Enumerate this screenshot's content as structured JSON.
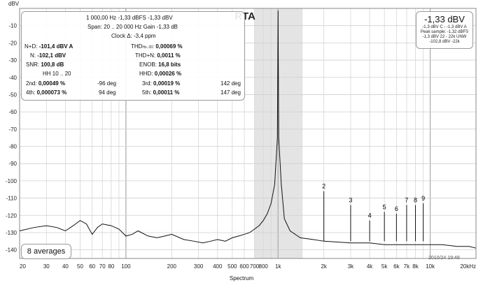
{
  "chart_data": {
    "type": "line",
    "title": "RTA",
    "ylabel": "dBV",
    "xlabel": "Spectrum",
    "xscale": "log",
    "xlim": [
      20,
      20000
    ],
    "ylim": [
      -145,
      0
    ],
    "grid": true,
    "x_ticks": [
      "20",
      "30",
      "40",
      "50",
      "60",
      "70",
      "80",
      "100",
      "200",
      "300",
      "400",
      "500",
      "600",
      "700",
      "800",
      "1k",
      "2k",
      "3k",
      "4k",
      "5k",
      "6k",
      "7k",
      "8k",
      "10k",
      "20kHz"
    ],
    "y_ticks": [
      "-10",
      "-20",
      "-30",
      "-40",
      "-50",
      "-60",
      "-70",
      "-80",
      "-90",
      "-100",
      "-110",
      "-120",
      "-130",
      "-140"
    ],
    "shaded_band": [
      700,
      1450
    ],
    "series": [
      {
        "x": [
          20,
          25,
          30,
          35,
          40,
          45,
          50,
          55,
          60,
          65,
          70,
          80,
          90,
          100,
          110,
          120,
          140,
          160,
          180,
          200,
          240,
          280,
          320,
          360,
          400,
          450,
          500,
          550,
          600,
          650,
          700,
          750,
          800,
          850,
          900,
          950,
          990,
          1000,
          1010,
          1050,
          1100,
          1200,
          1400,
          1700,
          2000,
          3000,
          4000,
          5000,
          6000,
          7000,
          8000,
          10000,
          12000,
          15000,
          18000,
          20000
        ],
        "y": [
          -129,
          -127,
          -126,
          -127,
          -129,
          -126,
          -123,
          -125,
          -131,
          -127,
          -125,
          -126,
          -128,
          -132,
          -131,
          -129,
          -132,
          -133,
          -132,
          -131,
          -134,
          -135,
          -136,
          -135,
          -134,
          -135,
          -133,
          -132,
          -131,
          -130,
          -128,
          -126,
          -123,
          -119,
          -113,
          -102,
          -75,
          -1.3,
          -75,
          -102,
          -122,
          -129,
          -133,
          -134,
          -135,
          -136,
          -136,
          -137,
          -137,
          -137,
          -137,
          -137,
          -137,
          -138,
          -138,
          -139
        ]
      }
    ],
    "harmonics": [
      {
        "label": "2",
        "x": 2000,
        "y": -106
      },
      {
        "label": "3",
        "x": 3000,
        "y": -114
      },
      {
        "label": "4",
        "x": 4000,
        "y": -123
      },
      {
        "label": "5",
        "x": 5000,
        "y": -118
      },
      {
        "label": "6",
        "x": 6000,
        "y": -119
      },
      {
        "label": "7",
        "x": 7000,
        "y": -114
      },
      {
        "label": "8",
        "x": 8000,
        "y": -114
      },
      {
        "label": "9",
        "x": 9000,
        "y": -113
      }
    ]
  },
  "info": {
    "line1": "1 000,00 Hz  -1,33 dBFS  -1,33 dBV",
    "line2": "Span: 20 .. 20 000 Hz   Gain -1,33 dB",
    "line3": "Clock Δ: -3,4 ppm",
    "nd_label": "N+D:",
    "nd_value": "-101,4 dBV A",
    "n_label": "N:",
    "n_value": "-102,1 dBV",
    "snr_label": "SNR:",
    "snr_value": "100,8 dB",
    "hh_label": "HH 10 .. 20",
    "thd_label": "THD",
    "thd_sub": "Hz..20",
    "thd_value": "0,00069 %",
    "thdn_label": "THD+N:",
    "thdn_value": "0,0011 %",
    "enob_label": "ENOB:",
    "enob_value": "16,8 bits",
    "hhd_label": "HHD:",
    "hhd_value": "0,00026 %",
    "h2_label": "2nd:",
    "h2_value": "0,00049 %",
    "h2_phase": "-96 deg",
    "h3_label": "3rd:",
    "h3_value": "0,00019 %",
    "h3_phase": "142 deg",
    "h4_label": "4th:",
    "h4_value": "0,000073 %",
    "h4_phase": "94 deg",
    "h5_label": "5th:",
    "h5_value": "0,00011 %",
    "h5_phase": "147 deg"
  },
  "level": {
    "main": "-1,33 dBV",
    "l1": "-1,3 dBV C - -1,3 dBV A",
    "l2": "Peak sample: -1,32 dBFS",
    "l3": "-1,3 dBV 22 - 22k UNW",
    "l4": "-102,8 dBV -22k"
  },
  "averages": "8 averages",
  "corner": "2010/24 19:48"
}
